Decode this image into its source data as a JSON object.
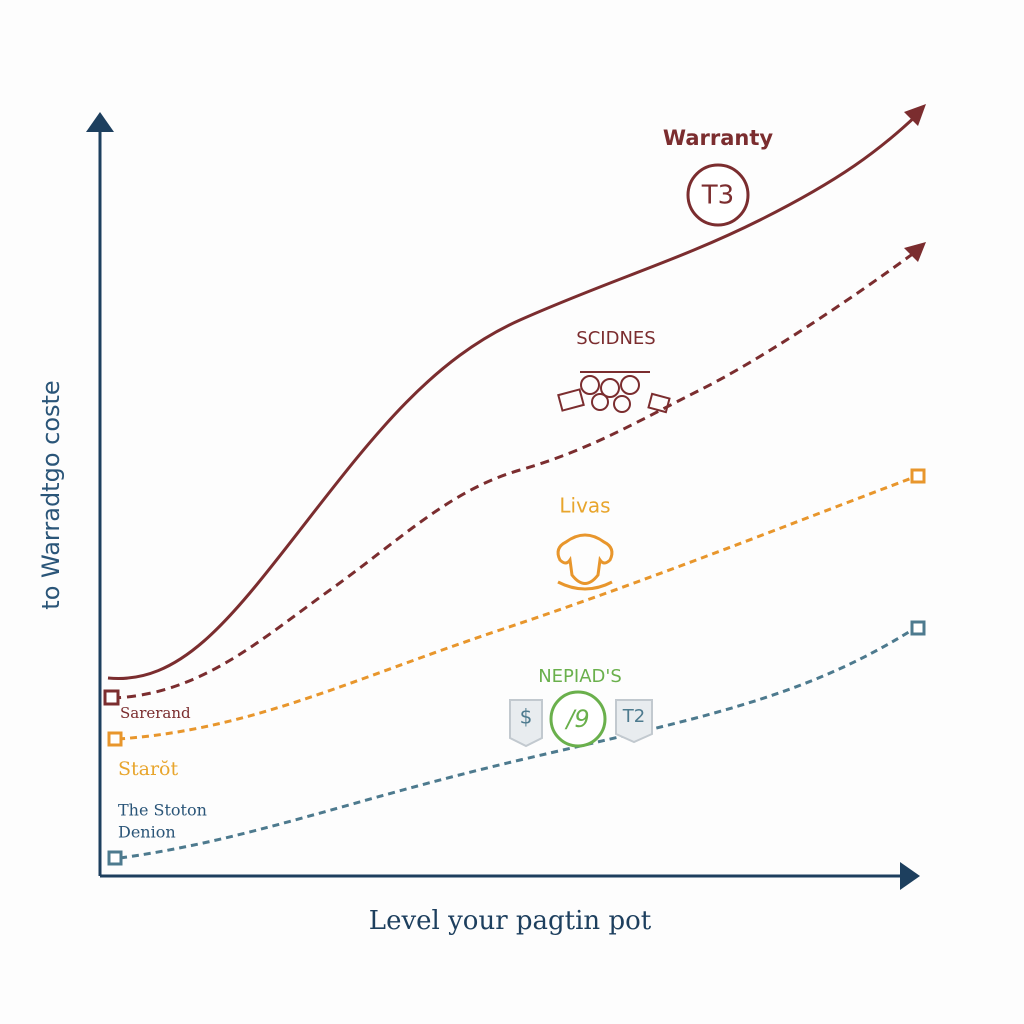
{
  "axes": {
    "y_label": "to Warradtgo coste",
    "x_label": "Level your pagtin pot"
  },
  "series": [
    {
      "label": "Warranty",
      "badge": "T3"
    },
    {
      "label": "SCIDNES"
    },
    {
      "label": "Livas"
    },
    {
      "label": "NEPIAD'S",
      "badges": [
        "$",
        "/9",
        "T2"
      ]
    }
  ],
  "start_labels": [
    "Sarerand",
    "Starŏt",
    "The Stoton",
    "Denion"
  ]
}
